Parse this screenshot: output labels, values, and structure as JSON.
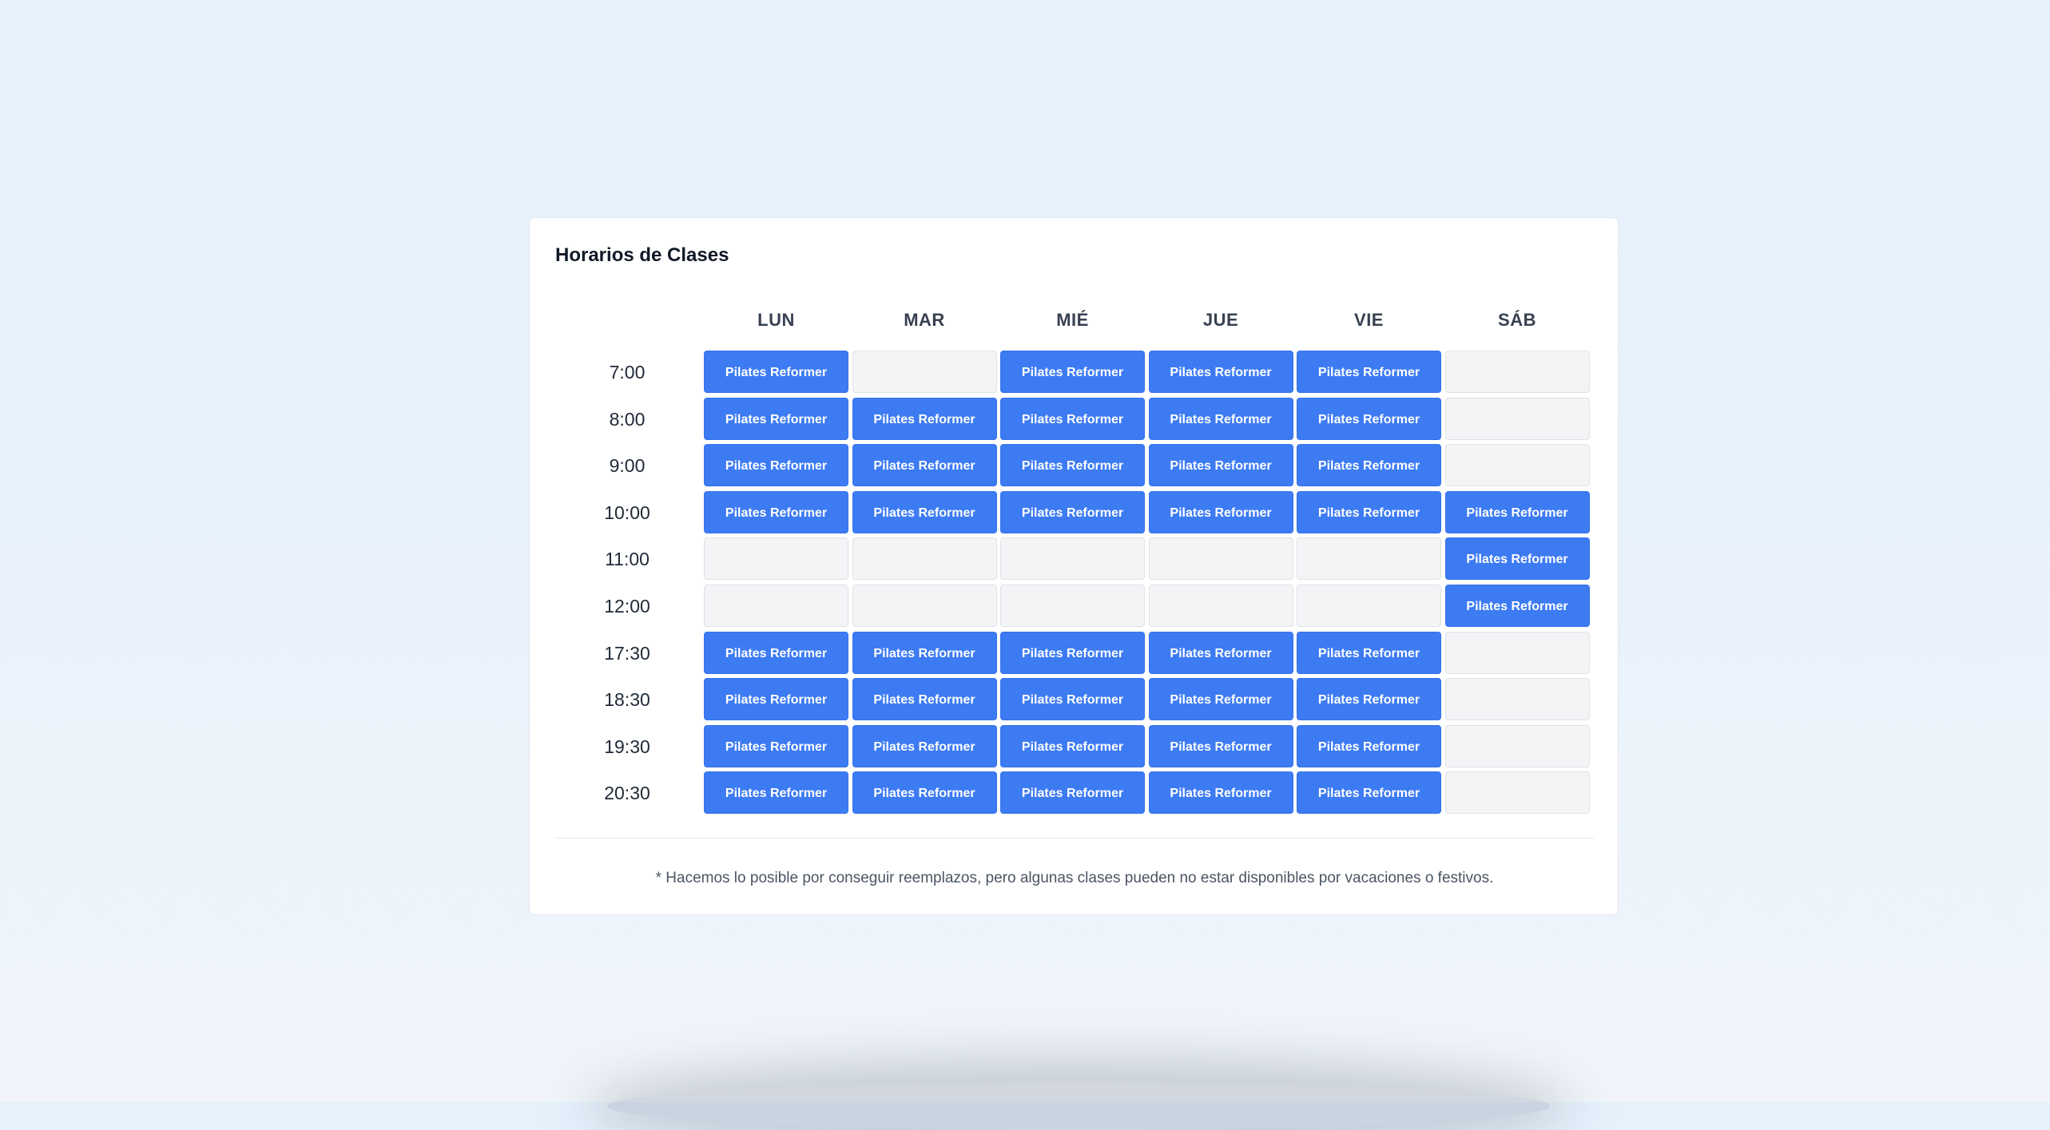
{
  "schedule": {
    "title": "Horarios de Clases",
    "class_label": "Pilates Reformer",
    "days": [
      "LUN",
      "MAR",
      "MIÉ",
      "JUE",
      "VIE",
      "SÁB"
    ],
    "rows": [
      {
        "time": "7:00",
        "slots": [
          true,
          false,
          true,
          true,
          true,
          false
        ]
      },
      {
        "time": "8:00",
        "slots": [
          true,
          true,
          true,
          true,
          true,
          false
        ]
      },
      {
        "time": "9:00",
        "slots": [
          true,
          true,
          true,
          true,
          true,
          false
        ]
      },
      {
        "time": "10:00",
        "slots": [
          true,
          true,
          true,
          true,
          true,
          true
        ]
      },
      {
        "time": "11:00",
        "slots": [
          false,
          false,
          false,
          false,
          false,
          true
        ]
      },
      {
        "time": "12:00",
        "slots": [
          false,
          false,
          false,
          false,
          false,
          true
        ]
      },
      {
        "time": "17:30",
        "slots": [
          true,
          true,
          true,
          true,
          true,
          false
        ]
      },
      {
        "time": "18:30",
        "slots": [
          true,
          true,
          true,
          true,
          true,
          false
        ]
      },
      {
        "time": "19:30",
        "slots": [
          true,
          true,
          true,
          true,
          true,
          false
        ]
      },
      {
        "time": "20:30",
        "slots": [
          true,
          true,
          true,
          true,
          true,
          false
        ]
      }
    ],
    "footnote": "* Hacemos lo posible por conseguir reemplazos, pero algunas clases pueden no estar disponibles por vacaciones o festivos."
  },
  "colors": {
    "class_slot": "#3d7bf3",
    "empty_slot": "#f3f4f6"
  }
}
